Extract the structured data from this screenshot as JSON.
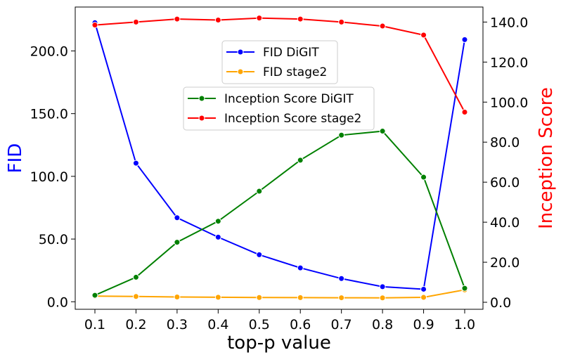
{
  "chart_data": {
    "type": "line",
    "title": "",
    "xlabel": "top-p value",
    "ylabel_left": "FID",
    "ylabel_right": "Inception Score",
    "colors": {
      "left_label": "#0000ff",
      "right_label": "#ff0000"
    },
    "x": [
      0.1,
      0.2,
      0.3,
      0.4,
      0.5,
      0.6,
      0.7,
      0.8,
      0.9,
      1.0
    ],
    "x_ticks": [
      "0.1",
      "0.2",
      "0.3",
      "0.4",
      "0.5",
      "0.6",
      "0.7",
      "0.8",
      "0.9",
      "1.0"
    ],
    "ylim_left": [
      -6,
      235
    ],
    "ylim_right": [
      -3.5,
      147.5
    ],
    "yticks_left": [
      {
        "value": 0,
        "label": "0.0"
      },
      {
        "value": 50,
        "label": "50.0"
      },
      {
        "value": 100,
        "label": "100.0"
      },
      {
        "value": 150,
        "label": "150.0"
      },
      {
        "value": 200,
        "label": "200.0"
      }
    ],
    "yticks_right": [
      {
        "value": 0,
        "label": "0.0"
      },
      {
        "value": 20,
        "label": "20.0"
      },
      {
        "value": 40,
        "label": "40.0"
      },
      {
        "value": 60,
        "label": "60.0"
      },
      {
        "value": 80,
        "label": "80.0"
      },
      {
        "value": 100,
        "label": "100.0"
      },
      {
        "value": 120,
        "label": "120.0"
      },
      {
        "value": 140,
        "label": "140.0"
      }
    ],
    "series": [
      {
        "name": "FID DiGIT",
        "axis": "left",
        "color": "#0000ff",
        "values": [
          222.5,
          110.5,
          67.0,
          51.5,
          37.5,
          27.0,
          18.5,
          12.0,
          10.0,
          209.0
        ]
      },
      {
        "name": "FID stage2",
        "axis": "left",
        "color": "#ffa500",
        "values": [
          4.5,
          4.2,
          3.8,
          3.6,
          3.4,
          3.3,
          3.2,
          3.1,
          3.5,
          9.5
        ]
      },
      {
        "name": "Inception Score DiGIT",
        "axis": "right",
        "color": "#008000",
        "values": [
          3.5,
          12.5,
          30.0,
          40.5,
          55.5,
          71.0,
          83.5,
          85.5,
          62.5,
          7.0
        ]
      },
      {
        "name": "Inception Score stage2",
        "axis": "right",
        "color": "#ff0000",
        "values": [
          138.5,
          140.0,
          141.5,
          141.0,
          142.0,
          141.5,
          140.0,
          138.0,
          133.5,
          95.0
        ]
      }
    ],
    "legends": [
      {
        "placement": "upper-center",
        "entries": [
          "FID DiGIT",
          "FID stage2"
        ]
      },
      {
        "placement": "center-right",
        "entries": [
          "Inception Score DiGIT",
          "Inception Score stage2"
        ]
      }
    ]
  }
}
